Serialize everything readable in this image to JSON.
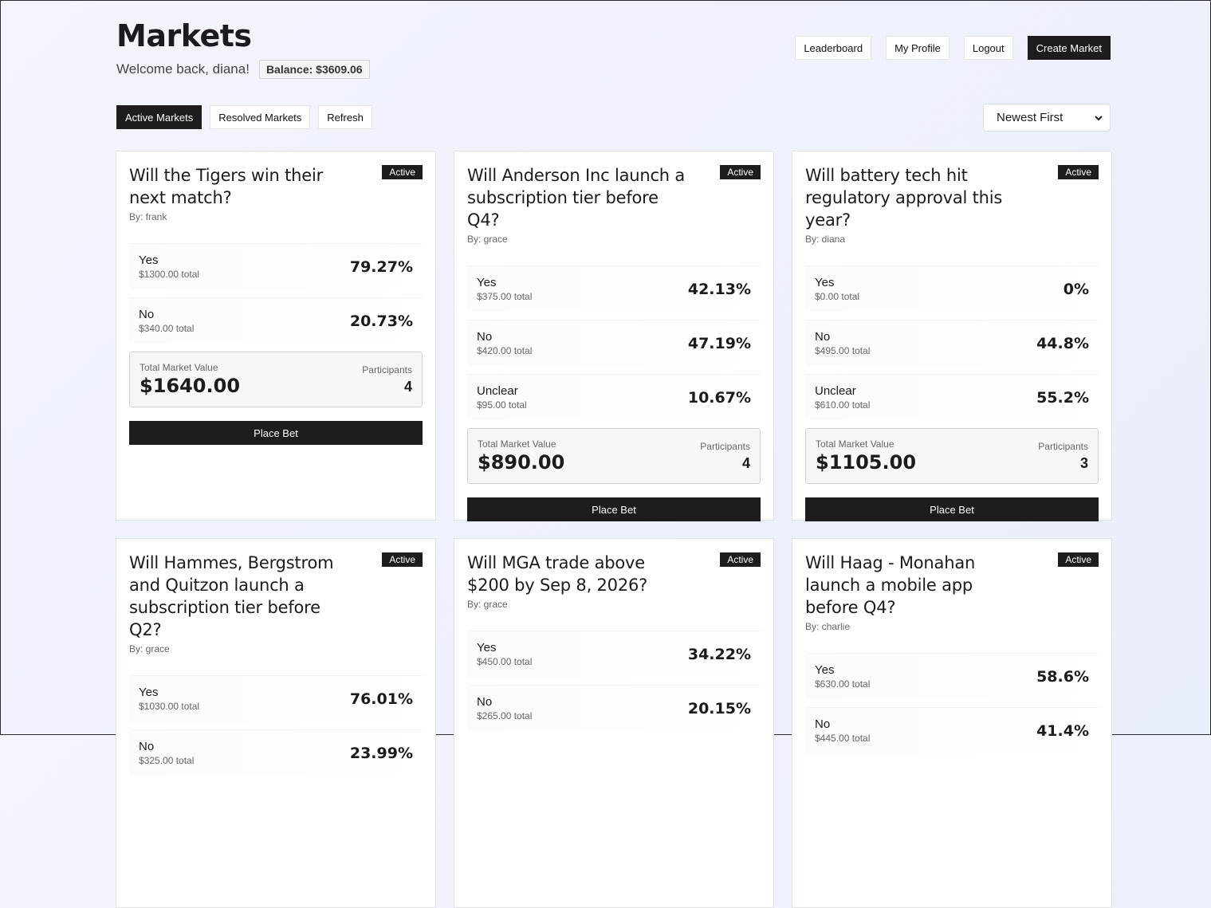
{
  "header": {
    "title": "Markets",
    "welcome": "Welcome back, diana!",
    "balance": "Balance: $3609.06"
  },
  "topnav": [
    "Leaderboard",
    "My Profile",
    "Logout",
    "Create Market"
  ],
  "tabs": [
    "Active Markets",
    "Resolved Markets",
    "Refresh"
  ],
  "sort": {
    "selected": "Newest First",
    "icon": "chevron-down-icon"
  },
  "labels": {
    "total_market_value": "Total Market Value",
    "participants": "Participants",
    "place_bet": "Place Bet"
  },
  "markets": [
    {
      "title": "Will the Tigers win their next match?",
      "status": "Active",
      "author": "By: frank",
      "options": [
        {
          "name": "Yes",
          "amount": "$1300.00 total",
          "pct": "79.27%"
        },
        {
          "name": "No",
          "amount": "$340.00 total",
          "pct": "20.73%"
        }
      ],
      "total": "$1640.00",
      "participants": "4"
    },
    {
      "title": "Will Anderson Inc launch a subscription tier before Q4?",
      "status": "Active",
      "author": "By: grace",
      "options": [
        {
          "name": "Yes",
          "amount": "$375.00 total",
          "pct": "42.13%"
        },
        {
          "name": "No",
          "amount": "$420.00 total",
          "pct": "47.19%"
        },
        {
          "name": "Unclear",
          "amount": "$95.00 total",
          "pct": "10.67%"
        }
      ],
      "total": "$890.00",
      "participants": "4"
    },
    {
      "title": "Will battery tech hit regulatory approval this year?",
      "status": "Active",
      "author": "By: diana",
      "options": [
        {
          "name": "Yes",
          "amount": "$0.00 total",
          "pct": "0%"
        },
        {
          "name": "No",
          "amount": "$495.00 total",
          "pct": "44.8%"
        },
        {
          "name": "Unclear",
          "amount": "$610.00 total",
          "pct": "55.2%"
        }
      ],
      "total": "$1105.00",
      "participants": "3"
    },
    {
      "title": "Will Hammes, Bergstrom and Quitzon launch a subscription tier before Q2?",
      "status": "Active",
      "author": "By: grace",
      "options": [
        {
          "name": "Yes",
          "amount": "$1030.00 total",
          "pct": "76.01%"
        },
        {
          "name": "No",
          "amount": "$325.00 total",
          "pct": "23.99%"
        }
      ],
      "total": "",
      "participants": ""
    },
    {
      "title": "Will MGA trade above $200 by Sep 8, 2026?",
      "status": "Active",
      "author": "By: grace",
      "options": [
        {
          "name": "Yes",
          "amount": "$450.00 total",
          "pct": "34.22%"
        },
        {
          "name": "No",
          "amount": "$265.00 total",
          "pct": "20.15%"
        }
      ],
      "total": "",
      "participants": ""
    },
    {
      "title": "Will Haag - Monahan launch a mobile app before Q4?",
      "status": "Active",
      "author": "By: charlie",
      "options": [
        {
          "name": "Yes",
          "amount": "$630.00 total",
          "pct": "58.6%"
        },
        {
          "name": "No",
          "amount": "$445.00 total",
          "pct": "41.4%"
        }
      ],
      "total": "",
      "participants": ""
    }
  ]
}
